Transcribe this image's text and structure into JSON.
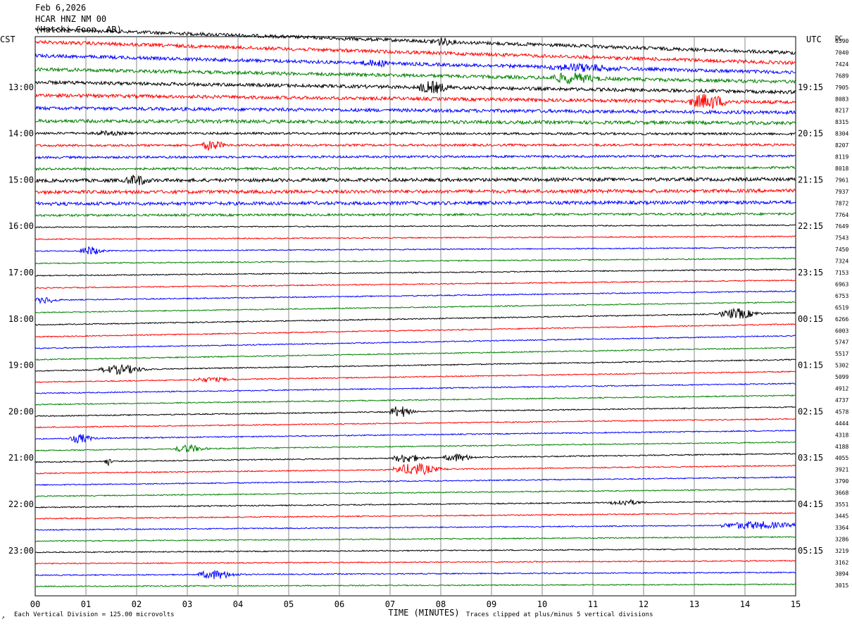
{
  "header": {
    "date": "Feb 6,2026",
    "station": "HCAR HNZ NM 00",
    "location": "(Hatchi Coon, AR)"
  },
  "chart_data": {
    "type": "line",
    "title": "Feb 6,2026",
    "left_axis_label": "CST",
    "right_axis_label": "UTC",
    "dc_label": "DC",
    "xlabel": "TIME (MINUTES)",
    "xlim": [
      0,
      15
    ],
    "x_ticks": [
      "00",
      "01",
      "02",
      "03",
      "04",
      "05",
      "06",
      "07",
      "08",
      "09",
      "10",
      "11",
      "12",
      "13",
      "14",
      "15"
    ],
    "left_time_labels": [
      {
        "row": 4,
        "label": "13:00"
      },
      {
        "row": 8,
        "label": "14:00"
      },
      {
        "row": 12,
        "label": "15:00"
      },
      {
        "row": 16,
        "label": "16:00"
      },
      {
        "row": 20,
        "label": "17:00"
      },
      {
        "row": 24,
        "label": "18:00"
      },
      {
        "row": 28,
        "label": "19:00"
      },
      {
        "row": 32,
        "label": "20:00"
      },
      {
        "row": 36,
        "label": "21:00"
      },
      {
        "row": 40,
        "label": "22:00"
      },
      {
        "row": 44,
        "label": "23:00"
      }
    ],
    "right_time_labels": [
      {
        "row": 4,
        "label": "19:15"
      },
      {
        "row": 8,
        "label": "20:15"
      },
      {
        "row": 12,
        "label": "21:15"
      },
      {
        "row": 16,
        "label": "22:15"
      },
      {
        "row": 20,
        "label": "23:15"
      },
      {
        "row": 24,
        "label": "00:15"
      },
      {
        "row": 28,
        "label": "01:15"
      },
      {
        "row": 32,
        "label": "02:15"
      },
      {
        "row": 36,
        "label": "03:15"
      },
      {
        "row": 40,
        "label": "04:15"
      },
      {
        "row": 44,
        "label": "05:15"
      }
    ],
    "dc_offsets": [
      "6590",
      "7040",
      "7424",
      "7689",
      "7905",
      "8083",
      "8217",
      "8315",
      "8304",
      "8207",
      "8119",
      "8018",
      "7961",
      "7937",
      "7872",
      "7764",
      "7649",
      "7543",
      "7450",
      "7324",
      "7153",
      "6963",
      "6753",
      "6519",
      "6266",
      "6003",
      "5747",
      "5517",
      "5302",
      "5099",
      "4912",
      "4737",
      "4578",
      "4444",
      "4318",
      "4188",
      "4055",
      "3921",
      "3790",
      "3668",
      "3551",
      "3445",
      "3364",
      "3286",
      "3219",
      "3162",
      "3094",
      "3015"
    ],
    "trace_colors": [
      "#000000",
      "#ff0000",
      "#0000ff",
      "#008000"
    ],
    "trace_tilt": [
      -34,
      -30,
      -24,
      -18,
      -14,
      -10,
      -6,
      -3,
      -1,
      1,
      2,
      2,
      2,
      2,
      2,
      2,
      3,
      4,
      5,
      7,
      9,
      11,
      13,
      15,
      17,
      18,
      18,
      17,
      16,
      15,
      14,
      13,
      13,
      12,
      12,
      12,
      12,
      11,
      11,
      10,
      9,
      8,
      7,
      6,
      5,
      4,
      4,
      3
    ],
    "noise_level": [
      3,
      3,
      3,
      3,
      3,
      3,
      3,
      3,
      2,
      2,
      2,
      2,
      3,
      3,
      3,
      2,
      1,
      1,
      1,
      1,
      1,
      1,
      1,
      1,
      1,
      1,
      1,
      1,
      1,
      1,
      1,
      1,
      1,
      1,
      1,
      1,
      1,
      1,
      1,
      1,
      1,
      1,
      1,
      1,
      1,
      1,
      1,
      1
    ],
    "events": [
      {
        "row": 0,
        "x": 7.9,
        "amp": 4,
        "dur": 0.3
      },
      {
        "row": 2,
        "x": 6.6,
        "amp": 3,
        "dur": 0.4
      },
      {
        "row": 2,
        "x": 10.5,
        "amp": 4,
        "dur": 0.9
      },
      {
        "row": 3,
        "x": 10.4,
        "amp": 6,
        "dur": 0.6
      },
      {
        "row": 4,
        "x": 7.7,
        "amp": 7,
        "dur": 0.4
      },
      {
        "row": 5,
        "x": 13.1,
        "amp": 9,
        "dur": 0.5
      },
      {
        "row": 8,
        "x": 1.3,
        "amp": 2,
        "dur": 0.4
      },
      {
        "row": 9,
        "x": 3.4,
        "amp": 6,
        "dur": 0.3
      },
      {
        "row": 12,
        "x": 1.9,
        "amp": 6,
        "dur": 0.3
      },
      {
        "row": 18,
        "x": 1.0,
        "amp": 6,
        "dur": 0.3
      },
      {
        "row": 22,
        "x": 0.1,
        "amp": 4,
        "dur": 0.3
      },
      {
        "row": 24,
        "x": 13.7,
        "amp": 7,
        "dur": 0.5
      },
      {
        "row": 28,
        "x": 1.5,
        "amp": 6,
        "dur": 0.6
      },
      {
        "row": 29,
        "x": 3.3,
        "amp": 3,
        "dur": 0.5
      },
      {
        "row": 32,
        "x": 7.1,
        "amp": 8,
        "dur": 0.3
      },
      {
        "row": 34,
        "x": 0.8,
        "amp": 6,
        "dur": 0.3
      },
      {
        "row": 35,
        "x": 2.9,
        "amp": 5,
        "dur": 0.4
      },
      {
        "row": 36,
        "x": 1.4,
        "amp": 5,
        "dur": 0.1
      },
      {
        "row": 36,
        "x": 7.2,
        "amp": 6,
        "dur": 0.4
      },
      {
        "row": 36,
        "x": 8.2,
        "amp": 5,
        "dur": 0.4
      },
      {
        "row": 37,
        "x": 7.3,
        "amp": 8,
        "dur": 0.6
      },
      {
        "row": 40,
        "x": 11.5,
        "amp": 4,
        "dur": 0.4
      },
      {
        "row": 42,
        "x": 13.9,
        "amp": 5,
        "dur": 1.0
      },
      {
        "row": 46,
        "x": 3.4,
        "amp": 6,
        "dur": 0.5
      }
    ]
  },
  "footer": {
    "scale_note": "Each Vertical Division =  125.00 microvolts",
    "clip_note": "Traces clipped at plus/minus 5 vertical divisions"
  }
}
